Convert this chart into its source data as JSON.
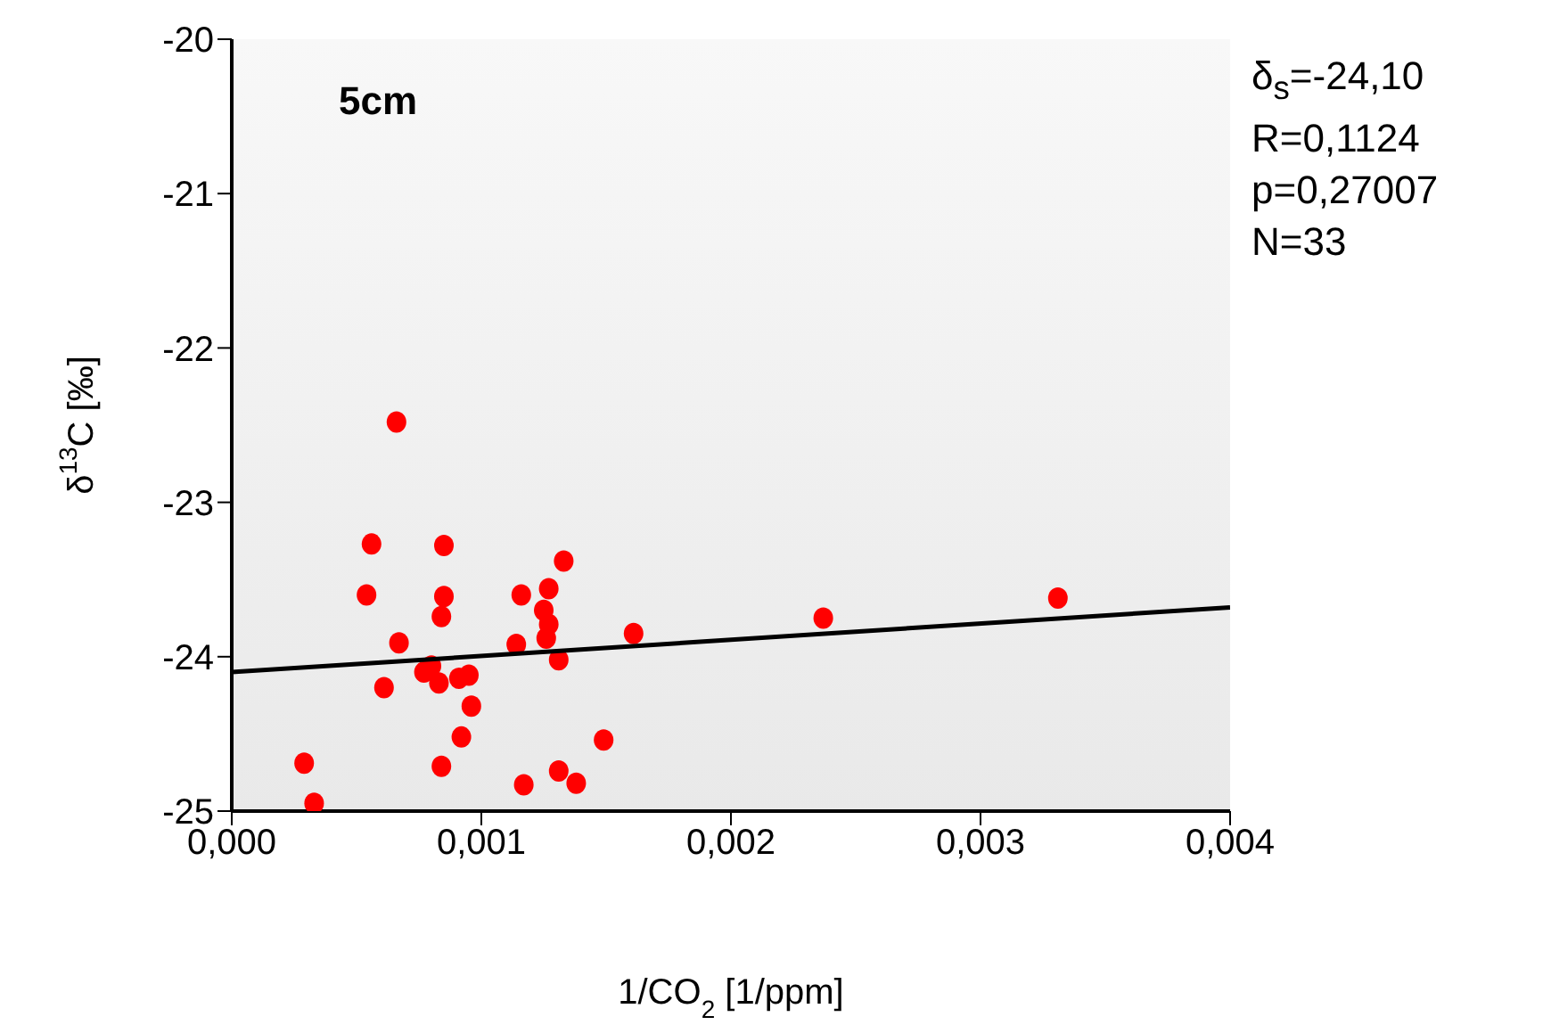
{
  "chart_data": {
    "type": "scatter",
    "xlabel": "1/CO$_{2}$ [1/ppm]",
    "ylabel": "δ$^{13}$C [‰]",
    "annotations": [
      "5cm",
      "δ$_{s}$=-24,10",
      "R=0,1124",
      "p=0,27007",
      "N=33"
    ],
    "xlim": [
      0,
      0.004
    ],
    "xticks": [
      {
        "value": 0,
        "label": "0,000"
      },
      {
        "value": 0.001,
        "label": "0,001"
      },
      {
        "value": 0.002,
        "label": "0,002"
      },
      {
        "value": 0.003,
        "label": "0,003"
      },
      {
        "value": 0.004,
        "label": "0,004"
      }
    ],
    "ylim": [
      -25,
      -20
    ],
    "yticks": [
      -25,
      -24,
      -23,
      -22,
      -21,
      -20
    ],
    "marker": "circle",
    "series": [
      {
        "type": "scatter",
        "color": "#ff0000",
        "x": [
          0.00066,
          0.00056,
          0.00085,
          0.00133,
          0.00054,
          0.00085,
          0.00116,
          0.00127,
          0.00084,
          0.00125,
          0.00127,
          0.00126,
          0.00114,
          0.00067,
          0.00161,
          0.00131,
          0.0008,
          0.00077,
          0.00083,
          0.00091,
          0.00095,
          0.00061,
          0.00096,
          0.00092,
          0.00149,
          0.00029,
          0.00084,
          0.00131,
          0.00138,
          0.00117,
          0.00033,
          0.00237,
          0.00331
        ],
        "values": [
          -22.48,
          -23.27,
          -23.28,
          -23.38,
          -23.6,
          -23.61,
          -23.6,
          -23.56,
          -23.74,
          -23.7,
          -23.79,
          -23.88,
          -23.92,
          -23.91,
          -23.85,
          -24.02,
          -24.06,
          -24.1,
          -24.17,
          -24.14,
          -24.12,
          -24.2,
          -24.32,
          -24.52,
          -24.54,
          -24.69,
          -24.71,
          -24.74,
          -24.82,
          -24.83,
          -24.95,
          -23.75,
          -23.62
        ]
      },
      {
        "type": "line",
        "color": "#000000",
        "x": [
          0,
          0.004
        ],
        "values": [
          -24.1,
          -23.68
        ],
        "marker": "none"
      }
    ]
  }
}
